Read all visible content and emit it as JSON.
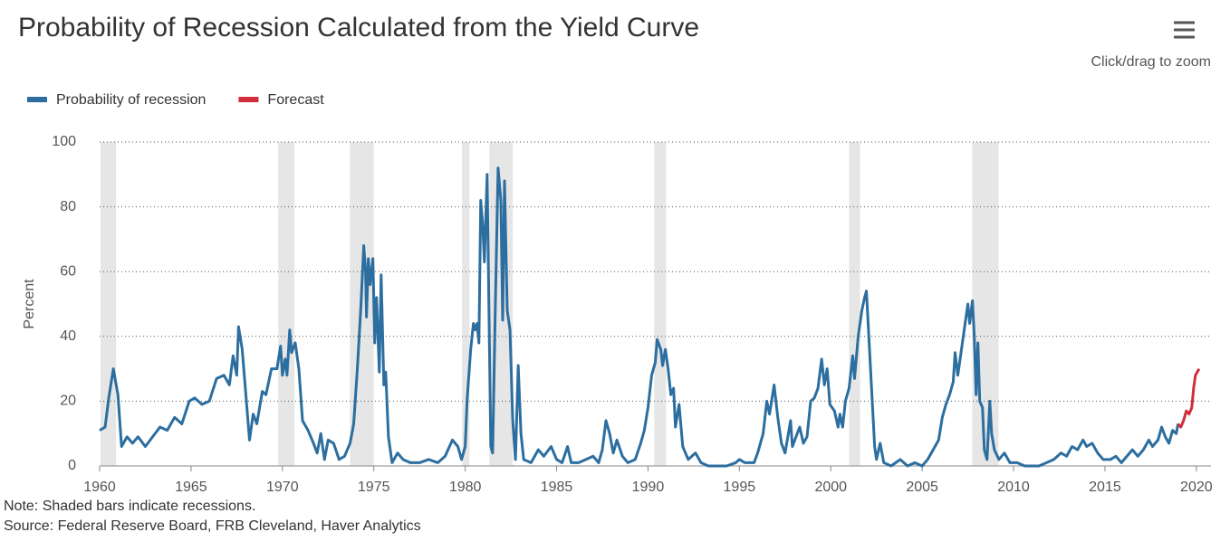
{
  "chart_data": {
    "type": "line",
    "title": "Probability of Recession Calculated from the Yield Curve",
    "zoom_hint": "Click/drag to zoom",
    "y_label": "Percent",
    "note": "Note: Shaded bars indicate recessions.",
    "source": "Source: Federal Reserve Board, FRB Cleveland, Haver Analytics",
    "xlim": [
      1960,
      2020.8
    ],
    "xticks": [
      1960,
      1965,
      1970,
      1975,
      1980,
      1985,
      1990,
      1995,
      2000,
      2005,
      2010,
      2015,
      2020
    ],
    "ylim": [
      0,
      100
    ],
    "yticks": [
      0,
      20,
      40,
      60,
      80,
      100
    ],
    "grid": true,
    "legend": "top-left",
    "recession_color": "#e6e6e6",
    "recessions": [
      [
        1960.05,
        1960.9
      ],
      [
        1969.77,
        1970.66
      ],
      [
        1973.7,
        1975.0
      ],
      [
        1979.83,
        1980.23
      ],
      [
        1981.32,
        1982.6
      ],
      [
        1990.34,
        1990.99
      ],
      [
        2001.0,
        2001.6
      ],
      [
        2007.74,
        2009.18
      ]
    ],
    "series": [
      {
        "name": "Probability of recession",
        "color": "#2c6e9f",
        "x": [
          1960.0,
          1960.3,
          1960.5,
          1960.75,
          1961.0,
          1961.2,
          1961.5,
          1961.8,
          1962.1,
          1962.5,
          1962.9,
          1963.3,
          1963.7,
          1964.1,
          1964.5,
          1964.9,
          1965.2,
          1965.6,
          1966.0,
          1966.4,
          1966.8,
          1967.1,
          1967.3,
          1967.5,
          1967.6,
          1967.8,
          1968.0,
          1968.2,
          1968.4,
          1968.6,
          1968.9,
          1969.1,
          1969.4,
          1969.7,
          1969.9,
          1970.0,
          1970.15,
          1970.25,
          1970.4,
          1970.5,
          1970.7,
          1970.9,
          1971.1,
          1971.4,
          1971.7,
          1971.9,
          1972.1,
          1972.3,
          1972.5,
          1972.8,
          1973.1,
          1973.4,
          1973.7,
          1973.9,
          1974.1,
          1974.3,
          1974.45,
          1974.55,
          1974.6,
          1974.7,
          1974.8,
          1974.95,
          1975.05,
          1975.15,
          1975.3,
          1975.4,
          1975.55,
          1975.65,
          1975.8,
          1976.0,
          1976.3,
          1976.6,
          1977.0,
          1977.5,
          1978.0,
          1978.5,
          1978.9,
          1979.3,
          1979.6,
          1979.8,
          1980.0,
          1980.1,
          1980.3,
          1980.45,
          1980.55,
          1980.65,
          1980.75,
          1980.85,
          1980.95,
          1981.05,
          1981.2,
          1981.3,
          1981.4,
          1981.5,
          1981.65,
          1981.8,
          1981.95,
          1982.05,
          1982.15,
          1982.3,
          1982.45,
          1982.6,
          1982.75,
          1982.9,
          1983.05,
          1983.2,
          1983.6,
          1984.0,
          1984.3,
          1984.7,
          1985.0,
          1985.3,
          1985.6,
          1985.8,
          1986.2,
          1986.6,
          1987.0,
          1987.3,
          1987.5,
          1987.7,
          1987.9,
          1988.1,
          1988.3,
          1988.6,
          1988.9,
          1989.3,
          1989.6,
          1989.8,
          1990.0,
          1990.2,
          1990.4,
          1990.5,
          1990.7,
          1990.8,
          1990.95,
          1991.1,
          1991.25,
          1991.4,
          1991.5,
          1991.7,
          1991.9,
          1992.2,
          1992.6,
          1992.9,
          1993.3,
          1993.8,
          1994.3,
          1994.8,
          1995.0,
          1995.3,
          1995.8,
          1996.0,
          1996.3,
          1996.5,
          1996.65,
          1996.9,
          1997.1,
          1997.3,
          1997.5,
          1997.8,
          1997.9,
          1998.1,
          1998.3,
          1998.5,
          1998.7,
          1998.9,
          1999.1,
          1999.3,
          1999.5,
          1999.65,
          1999.8,
          1999.95,
          2000.2,
          2000.4,
          2000.5,
          2000.65,
          2000.8,
          2001.0,
          2001.2,
          2001.3,
          2001.5,
          2001.7,
          2001.85,
          2001.95,
          2002.1,
          2002.25,
          2002.4,
          2002.5,
          2002.7,
          2002.9,
          2003.3,
          2003.8,
          2004.2,
          2004.6,
          2005.0,
          2005.3,
          2005.6,
          2005.9,
          2006.1,
          2006.3,
          2006.5,
          2006.7,
          2006.8,
          2006.95,
          2007.1,
          2007.3,
          2007.5,
          2007.6,
          2007.75,
          2007.85,
          2007.95,
          2008.05,
          2008.15,
          2008.3,
          2008.4,
          2008.55,
          2008.7,
          2008.8,
          2008.95,
          2009.2,
          2009.5,
          2009.8,
          2010.2,
          2010.6,
          2011.0,
          2011.4,
          2011.8,
          2012.2,
          2012.6,
          2012.9,
          2013.2,
          2013.5,
          2013.8,
          2014.0,
          2014.3,
          2014.6,
          2014.9,
          2015.3,
          2015.6,
          2015.9,
          2016.2,
          2016.5,
          2016.8,
          2017.1,
          2017.4,
          2017.6,
          2017.9,
          2018.1,
          2018.3,
          2018.5,
          2018.7,
          2018.9,
          2019.0
        ],
        "values": [
          11,
          12,
          21,
          30,
          22,
          6,
          9,
          7,
          9,
          6,
          9,
          12,
          11,
          15,
          13,
          20,
          21,
          19,
          20,
          27,
          28,
          25,
          34,
          28,
          43,
          36,
          22,
          8,
          16,
          13,
          23,
          22,
          30,
          30,
          37,
          28,
          33,
          28,
          42,
          35,
          38,
          30,
          14,
          11,
          7,
          4,
          10,
          2,
          8,
          7,
          2,
          3,
          7,
          13,
          30,
          50,
          68,
          60,
          46,
          64,
          56,
          64,
          38,
          52,
          29,
          59,
          25,
          29,
          9,
          1,
          4,
          2,
          1,
          1,
          2,
          1,
          3,
          8,
          6,
          2,
          6,
          20,
          36,
          44,
          42,
          44,
          38,
          82,
          75,
          63,
          90,
          48,
          6,
          4,
          50,
          92,
          82,
          45,
          88,
          48,
          42,
          14,
          2,
          31,
          10,
          2,
          1,
          5,
          3,
          6,
          2,
          1,
          6,
          1,
          1,
          2,
          3,
          1,
          5,
          14,
          10,
          4,
          8,
          3,
          1,
          2,
          7,
          11,
          18,
          28,
          32,
          39,
          36,
          31,
          36,
          30,
          22,
          24,
          12,
          19,
          6,
          2,
          4,
          1,
          0,
          0,
          0,
          1,
          2,
          1,
          1,
          4,
          10,
          20,
          16,
          25,
          15,
          7,
          4,
          14,
          6,
          9,
          12,
          7,
          9,
          20,
          21,
          24,
          33,
          25,
          30,
          19,
          17,
          12,
          16,
          12,
          20,
          24,
          34,
          27,
          40,
          48,
          52,
          54,
          38,
          22,
          6,
          2,
          7,
          1,
          0,
          2,
          0,
          1,
          0,
          2,
          5,
          8,
          15,
          19,
          22,
          26,
          35,
          28,
          34,
          42,
          50,
          44,
          51,
          40,
          22,
          38,
          20,
          18,
          5,
          2,
          20,
          10,
          5,
          2,
          4,
          1,
          1,
          0,
          0,
          0,
          1,
          2,
          4,
          3,
          6,
          5,
          8,
          6,
          7,
          4,
          2,
          2,
          3,
          1,
          3,
          5,
          3,
          5,
          8,
          6,
          8,
          12,
          9,
          7,
          11,
          10,
          13
        ]
      },
      {
        "name": "Forecast",
        "color": "#d12e3b",
        "x": [
          2019.0,
          2019.15,
          2019.3,
          2019.45,
          2019.6,
          2019.75,
          2019.85,
          2019.95,
          2020.05,
          2020.15
        ],
        "values": [
          13,
          12,
          14,
          17,
          16,
          18,
          24,
          28,
          29,
          30
        ]
      }
    ]
  }
}
